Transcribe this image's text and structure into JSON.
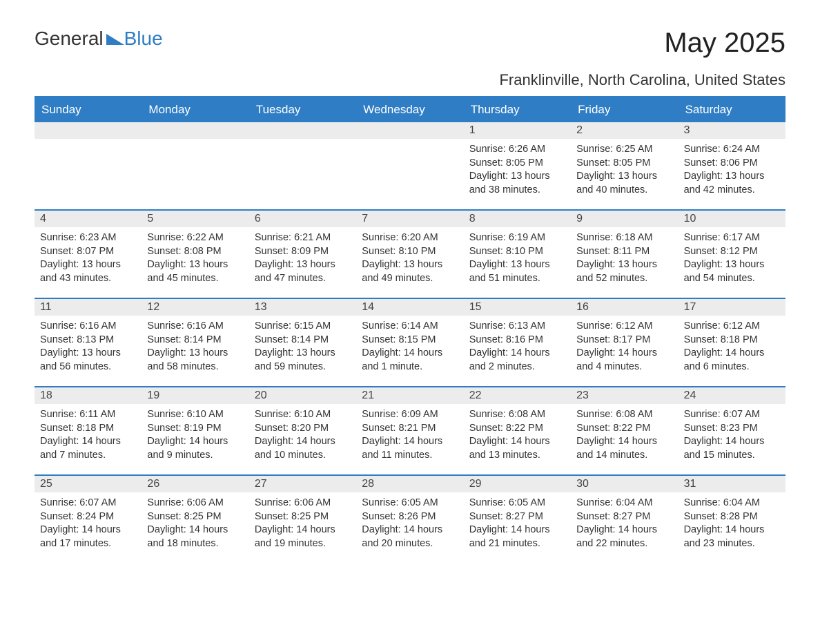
{
  "logo": {
    "general": "General",
    "blue": "Blue",
    "triangle_color": "#2f7dc4"
  },
  "title": "May 2025",
  "location": "Franklinville, North Carolina, United States",
  "colors": {
    "header_bg": "#2f7dc4",
    "header_text": "#ffffff",
    "daynum_bg": "#ececec",
    "border": "#2f7dc4",
    "body_text": "#333333",
    "page_bg": "#ffffff"
  },
  "dow": [
    "Sunday",
    "Monday",
    "Tuesday",
    "Wednesday",
    "Thursday",
    "Friday",
    "Saturday"
  ],
  "weeks": [
    [
      null,
      null,
      null,
      null,
      {
        "n": "1",
        "sunrise": "6:26 AM",
        "sunset": "8:05 PM",
        "daylight": "13 hours and 38 minutes."
      },
      {
        "n": "2",
        "sunrise": "6:25 AM",
        "sunset": "8:05 PM",
        "daylight": "13 hours and 40 minutes."
      },
      {
        "n": "3",
        "sunrise": "6:24 AM",
        "sunset": "8:06 PM",
        "daylight": "13 hours and 42 minutes."
      }
    ],
    [
      {
        "n": "4",
        "sunrise": "6:23 AM",
        "sunset": "8:07 PM",
        "daylight": "13 hours and 43 minutes."
      },
      {
        "n": "5",
        "sunrise": "6:22 AM",
        "sunset": "8:08 PM",
        "daylight": "13 hours and 45 minutes."
      },
      {
        "n": "6",
        "sunrise": "6:21 AM",
        "sunset": "8:09 PM",
        "daylight": "13 hours and 47 minutes."
      },
      {
        "n": "7",
        "sunrise": "6:20 AM",
        "sunset": "8:10 PM",
        "daylight": "13 hours and 49 minutes."
      },
      {
        "n": "8",
        "sunrise": "6:19 AM",
        "sunset": "8:10 PM",
        "daylight": "13 hours and 51 minutes."
      },
      {
        "n": "9",
        "sunrise": "6:18 AM",
        "sunset": "8:11 PM",
        "daylight": "13 hours and 52 minutes."
      },
      {
        "n": "10",
        "sunrise": "6:17 AM",
        "sunset": "8:12 PM",
        "daylight": "13 hours and 54 minutes."
      }
    ],
    [
      {
        "n": "11",
        "sunrise": "6:16 AM",
        "sunset": "8:13 PM",
        "daylight": "13 hours and 56 minutes."
      },
      {
        "n": "12",
        "sunrise": "6:16 AM",
        "sunset": "8:14 PM",
        "daylight": "13 hours and 58 minutes."
      },
      {
        "n": "13",
        "sunrise": "6:15 AM",
        "sunset": "8:14 PM",
        "daylight": "13 hours and 59 minutes."
      },
      {
        "n": "14",
        "sunrise": "6:14 AM",
        "sunset": "8:15 PM",
        "daylight": "14 hours and 1 minute."
      },
      {
        "n": "15",
        "sunrise": "6:13 AM",
        "sunset": "8:16 PM",
        "daylight": "14 hours and 2 minutes."
      },
      {
        "n": "16",
        "sunrise": "6:12 AM",
        "sunset": "8:17 PM",
        "daylight": "14 hours and 4 minutes."
      },
      {
        "n": "17",
        "sunrise": "6:12 AM",
        "sunset": "8:18 PM",
        "daylight": "14 hours and 6 minutes."
      }
    ],
    [
      {
        "n": "18",
        "sunrise": "6:11 AM",
        "sunset": "8:18 PM",
        "daylight": "14 hours and 7 minutes."
      },
      {
        "n": "19",
        "sunrise": "6:10 AM",
        "sunset": "8:19 PM",
        "daylight": "14 hours and 9 minutes."
      },
      {
        "n": "20",
        "sunrise": "6:10 AM",
        "sunset": "8:20 PM",
        "daylight": "14 hours and 10 minutes."
      },
      {
        "n": "21",
        "sunrise": "6:09 AM",
        "sunset": "8:21 PM",
        "daylight": "14 hours and 11 minutes."
      },
      {
        "n": "22",
        "sunrise": "6:08 AM",
        "sunset": "8:22 PM",
        "daylight": "14 hours and 13 minutes."
      },
      {
        "n": "23",
        "sunrise": "6:08 AM",
        "sunset": "8:22 PM",
        "daylight": "14 hours and 14 minutes."
      },
      {
        "n": "24",
        "sunrise": "6:07 AM",
        "sunset": "8:23 PM",
        "daylight": "14 hours and 15 minutes."
      }
    ],
    [
      {
        "n": "25",
        "sunrise": "6:07 AM",
        "sunset": "8:24 PM",
        "daylight": "14 hours and 17 minutes."
      },
      {
        "n": "26",
        "sunrise": "6:06 AM",
        "sunset": "8:25 PM",
        "daylight": "14 hours and 18 minutes."
      },
      {
        "n": "27",
        "sunrise": "6:06 AM",
        "sunset": "8:25 PM",
        "daylight": "14 hours and 19 minutes."
      },
      {
        "n": "28",
        "sunrise": "6:05 AM",
        "sunset": "8:26 PM",
        "daylight": "14 hours and 20 minutes."
      },
      {
        "n": "29",
        "sunrise": "6:05 AM",
        "sunset": "8:27 PM",
        "daylight": "14 hours and 21 minutes."
      },
      {
        "n": "30",
        "sunrise": "6:04 AM",
        "sunset": "8:27 PM",
        "daylight": "14 hours and 22 minutes."
      },
      {
        "n": "31",
        "sunrise": "6:04 AM",
        "sunset": "8:28 PM",
        "daylight": "14 hours and 23 minutes."
      }
    ]
  ],
  "labels": {
    "sunrise": "Sunrise: ",
    "sunset": "Sunset: ",
    "daylight": "Daylight: "
  }
}
